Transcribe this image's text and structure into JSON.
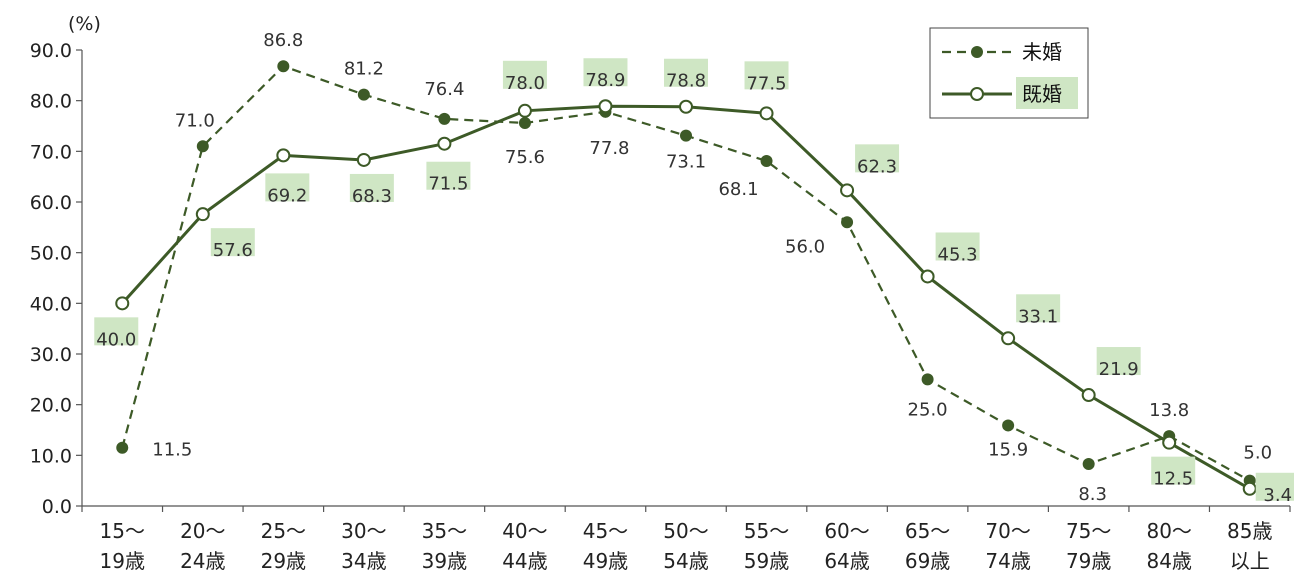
{
  "chart_data": {
    "type": "line",
    "unit_label": "(%)",
    "ylim": [
      0,
      90
    ],
    "yticks": [
      "0.0",
      "10.0",
      "20.0",
      "30.0",
      "40.0",
      "50.0",
      "60.0",
      "70.0",
      "80.0",
      "90.0"
    ],
    "categories": [
      [
        "15～",
        "19歳"
      ],
      [
        "20～",
        "24歳"
      ],
      [
        "25～",
        "29歳"
      ],
      [
        "30～",
        "34歳"
      ],
      [
        "35～",
        "39歳"
      ],
      [
        "40～",
        "44歳"
      ],
      [
        "45～",
        "49歳"
      ],
      [
        "50～",
        "54歳"
      ],
      [
        "55～",
        "59歳"
      ],
      [
        "60～",
        "64歳"
      ],
      [
        "65～",
        "69歳"
      ],
      [
        "70～",
        "74歳"
      ],
      [
        "75～",
        "79歳"
      ],
      [
        "80～",
        "84歳"
      ],
      [
        "85歳",
        "以上"
      ]
    ],
    "series": [
      {
        "name": "未婚",
        "style": "dashed-filled",
        "color": "#3d5a27",
        "values": [
          11.5,
          71.0,
          86.8,
          81.2,
          76.4,
          75.6,
          77.8,
          73.1,
          68.1,
          56.0,
          25.0,
          15.9,
          8.3,
          13.8,
          5.0
        ],
        "labels": [
          "11.5",
          "71.0",
          "86.8",
          "81.2",
          "76.4",
          "75.6",
          "77.8",
          "73.1",
          "68.1",
          "56.0",
          "25.0",
          "15.9",
          "8.3",
          "13.8",
          "5.0"
        ]
      },
      {
        "name": "既婚",
        "style": "solid-hollow",
        "color": "#3d5a27",
        "highlight": "#cfe6c4",
        "values": [
          40.0,
          57.6,
          69.2,
          68.3,
          71.5,
          78.0,
          78.9,
          78.8,
          77.5,
          62.3,
          45.3,
          33.1,
          21.9,
          12.5,
          3.4
        ],
        "labels": [
          "40.0",
          "57.6",
          "69.2",
          "68.3",
          "71.5",
          "78.0",
          "78.9",
          "78.8",
          "77.5",
          "62.3",
          "45.3",
          "33.1",
          "21.9",
          "12.5",
          "3.4"
        ]
      }
    ],
    "legend": {
      "position": "top-right",
      "items": [
        "未婚",
        "既婚"
      ]
    },
    "grid": false
  }
}
